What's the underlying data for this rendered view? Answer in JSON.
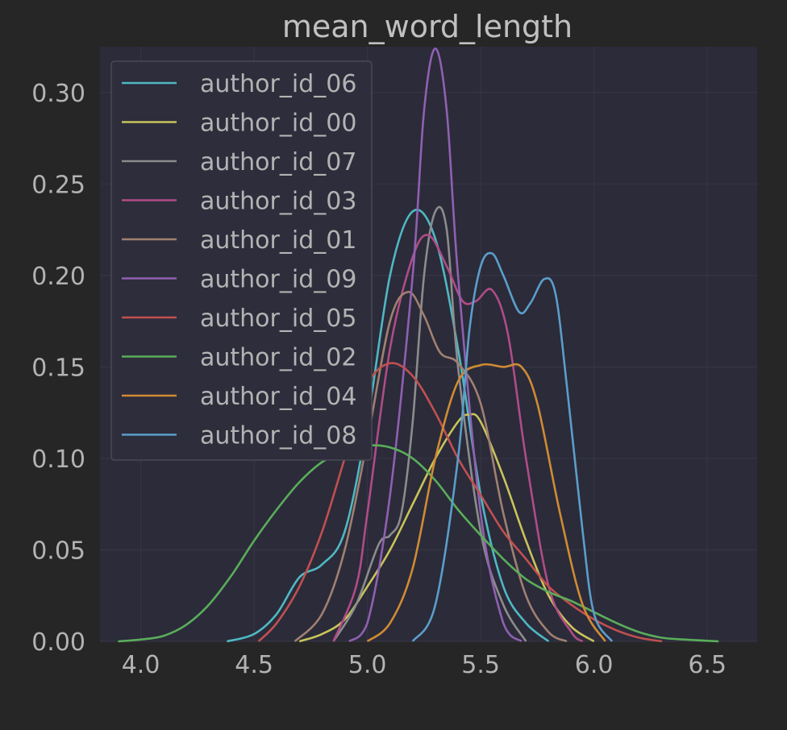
{
  "chart_data": {
    "type": "line",
    "title": "mean_word_length",
    "xlabel": "",
    "ylabel": "",
    "xlim": [
      3.82,
      6.72
    ],
    "ylim": [
      0,
      0.325
    ],
    "xticks": [
      4.0,
      4.5,
      5.0,
      5.5,
      6.0,
      6.5
    ],
    "xtick_labels": [
      "4.0",
      "4.5",
      "5.0",
      "5.5",
      "6.0",
      "6.5"
    ],
    "yticks": [
      0.0,
      0.05,
      0.1,
      0.15,
      0.2,
      0.25,
      0.3
    ],
    "ytick_labels": [
      "0.00",
      "0.05",
      "0.10",
      "0.15",
      "0.20",
      "0.25",
      "0.30"
    ],
    "grid": true,
    "legend_position": "top-left",
    "background": "#2b2b3a",
    "series": [
      {
        "name": "author_id_06",
        "color": "#4fb8c2",
        "points": [
          [
            4.38,
            0.0
          ],
          [
            4.5,
            0.004
          ],
          [
            4.6,
            0.015
          ],
          [
            4.7,
            0.035
          ],
          [
            4.8,
            0.042
          ],
          [
            4.9,
            0.06
          ],
          [
            5.0,
            0.12
          ],
          [
            5.1,
            0.2
          ],
          [
            5.2,
            0.235
          ],
          [
            5.3,
            0.22
          ],
          [
            5.4,
            0.16
          ],
          [
            5.5,
            0.08
          ],
          [
            5.6,
            0.03
          ],
          [
            5.7,
            0.01
          ],
          [
            5.8,
            0.0
          ]
        ]
      },
      {
        "name": "author_id_00",
        "color": "#c8c45a",
        "points": [
          [
            4.7,
            0.0
          ],
          [
            4.8,
            0.004
          ],
          [
            4.9,
            0.012
          ],
          [
            5.0,
            0.03
          ],
          [
            5.1,
            0.05
          ],
          [
            5.2,
            0.075
          ],
          [
            5.3,
            0.1
          ],
          [
            5.4,
            0.12
          ],
          [
            5.45,
            0.124
          ],
          [
            5.5,
            0.12
          ],
          [
            5.6,
            0.09
          ],
          [
            5.7,
            0.055
          ],
          [
            5.8,
            0.025
          ],
          [
            5.9,
            0.008
          ],
          [
            6.0,
            0.0
          ]
        ]
      },
      {
        "name": "author_id_07",
        "color": "#8c8c8c",
        "points": [
          [
            4.85,
            0.0
          ],
          [
            4.95,
            0.02
          ],
          [
            5.05,
            0.053
          ],
          [
            5.1,
            0.058
          ],
          [
            5.15,
            0.07
          ],
          [
            5.2,
            0.12
          ],
          [
            5.25,
            0.2
          ],
          [
            5.3,
            0.235
          ],
          [
            5.35,
            0.225
          ],
          [
            5.4,
            0.15
          ],
          [
            5.5,
            0.06
          ],
          [
            5.6,
            0.02
          ],
          [
            5.7,
            0.0
          ]
        ]
      },
      {
        "name": "author_id_03",
        "color": "#b04c86",
        "points": [
          [
            4.85,
            0.0
          ],
          [
            4.95,
            0.03
          ],
          [
            5.0,
            0.07
          ],
          [
            5.1,
            0.16
          ],
          [
            5.2,
            0.21
          ],
          [
            5.27,
            0.222
          ],
          [
            5.35,
            0.205
          ],
          [
            5.42,
            0.186
          ],
          [
            5.48,
            0.186
          ],
          [
            5.55,
            0.192
          ],
          [
            5.62,
            0.168
          ],
          [
            5.7,
            0.1
          ],
          [
            5.8,
            0.03
          ],
          [
            5.9,
            0.005
          ],
          [
            5.95,
            0.0
          ]
        ]
      },
      {
        "name": "author_id_01",
        "color": "#a08070",
        "points": [
          [
            4.68,
            0.0
          ],
          [
            4.8,
            0.015
          ],
          [
            4.9,
            0.05
          ],
          [
            5.0,
            0.11
          ],
          [
            5.1,
            0.175
          ],
          [
            5.18,
            0.191
          ],
          [
            5.25,
            0.178
          ],
          [
            5.32,
            0.158
          ],
          [
            5.4,
            0.152
          ],
          [
            5.5,
            0.13
          ],
          [
            5.6,
            0.07
          ],
          [
            5.7,
            0.025
          ],
          [
            5.8,
            0.005
          ],
          [
            5.88,
            0.0
          ]
        ]
      },
      {
        "name": "author_id_09",
        "color": "#9060b0",
        "points": [
          [
            4.92,
            0.0
          ],
          [
            5.0,
            0.01
          ],
          [
            5.1,
            0.08
          ],
          [
            5.2,
            0.2
          ],
          [
            5.25,
            0.29
          ],
          [
            5.3,
            0.324
          ],
          [
            5.35,
            0.29
          ],
          [
            5.4,
            0.2
          ],
          [
            5.5,
            0.07
          ],
          [
            5.6,
            0.01
          ],
          [
            5.68,
            0.0
          ]
        ]
      },
      {
        "name": "author_id_05",
        "color": "#c05050",
        "points": [
          [
            4.52,
            0.0
          ],
          [
            4.6,
            0.01
          ],
          [
            4.7,
            0.03
          ],
          [
            4.8,
            0.06
          ],
          [
            4.9,
            0.1
          ],
          [
            5.0,
            0.14
          ],
          [
            5.1,
            0.152
          ],
          [
            5.2,
            0.145
          ],
          [
            5.3,
            0.125
          ],
          [
            5.4,
            0.1
          ],
          [
            5.5,
            0.08
          ],
          [
            5.6,
            0.06
          ],
          [
            5.7,
            0.045
          ],
          [
            5.8,
            0.03
          ],
          [
            5.9,
            0.02
          ],
          [
            6.0,
            0.012
          ],
          [
            6.1,
            0.006
          ],
          [
            6.2,
            0.002
          ],
          [
            6.3,
            0.0
          ]
        ]
      },
      {
        "name": "author_id_02",
        "color": "#5aad5a",
        "points": [
          [
            3.9,
            0.0
          ],
          [
            4.0,
            0.001
          ],
          [
            4.1,
            0.003
          ],
          [
            4.2,
            0.009
          ],
          [
            4.3,
            0.02
          ],
          [
            4.4,
            0.036
          ],
          [
            4.5,
            0.055
          ],
          [
            4.6,
            0.072
          ],
          [
            4.7,
            0.087
          ],
          [
            4.8,
            0.098
          ],
          [
            4.9,
            0.104
          ],
          [
            5.0,
            0.107
          ],
          [
            5.1,
            0.106
          ],
          [
            5.2,
            0.1
          ],
          [
            5.3,
            0.088
          ],
          [
            5.4,
            0.072
          ],
          [
            5.5,
            0.058
          ],
          [
            5.6,
            0.045
          ],
          [
            5.7,
            0.034
          ],
          [
            5.8,
            0.027
          ],
          [
            5.9,
            0.022
          ],
          [
            6.0,
            0.016
          ],
          [
            6.1,
            0.01
          ],
          [
            6.2,
            0.005
          ],
          [
            6.3,
            0.002
          ],
          [
            6.4,
            0.001
          ],
          [
            6.55,
            0.0
          ]
        ]
      },
      {
        "name": "author_id_04",
        "color": "#d08b33",
        "points": [
          [
            5.0,
            0.0
          ],
          [
            5.1,
            0.01
          ],
          [
            5.2,
            0.04
          ],
          [
            5.3,
            0.1
          ],
          [
            5.4,
            0.142
          ],
          [
            5.5,
            0.151
          ],
          [
            5.6,
            0.15
          ],
          [
            5.68,
            0.15
          ],
          [
            5.75,
            0.13
          ],
          [
            5.85,
            0.07
          ],
          [
            5.95,
            0.02
          ],
          [
            6.05,
            0.0
          ]
        ]
      },
      {
        "name": "author_id_08",
        "color": "#5b9ec9",
        "points": [
          [
            5.2,
            0.0
          ],
          [
            5.3,
            0.02
          ],
          [
            5.4,
            0.1
          ],
          [
            5.45,
            0.17
          ],
          [
            5.5,
            0.205
          ],
          [
            5.55,
            0.212
          ],
          [
            5.6,
            0.2
          ],
          [
            5.67,
            0.18
          ],
          [
            5.72,
            0.185
          ],
          [
            5.78,
            0.198
          ],
          [
            5.83,
            0.19
          ],
          [
            5.88,
            0.14
          ],
          [
            5.95,
            0.06
          ],
          [
            6.0,
            0.015
          ],
          [
            6.08,
            0.0
          ]
        ]
      }
    ]
  }
}
